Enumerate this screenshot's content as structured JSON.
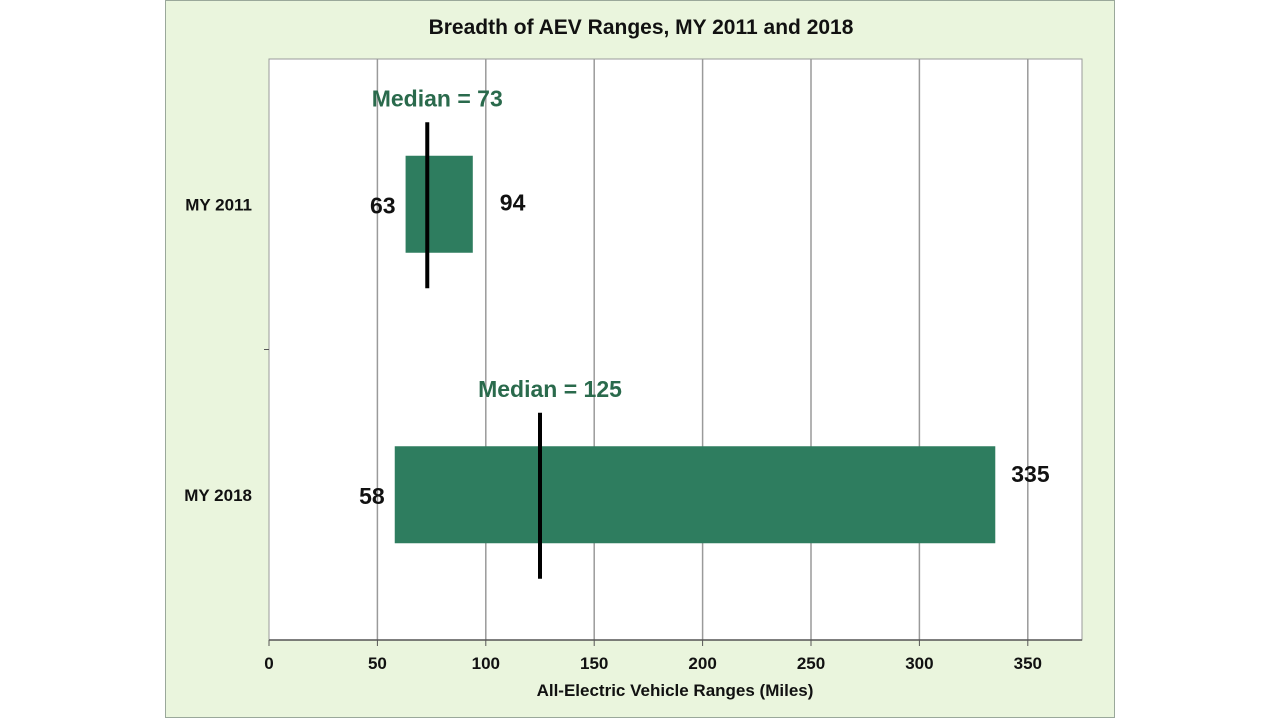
{
  "chart_data": {
    "type": "bar",
    "orientation": "horizontal",
    "title": "Breadth of AEV Ranges, MY 2011 and 2018",
    "xlabel": "All-Electric Vehicle Ranges (Miles)",
    "ylabel": "",
    "xlim": [
      0,
      375
    ],
    "x_ticks": [
      0,
      50,
      100,
      150,
      200,
      250,
      300,
      350
    ],
    "grid": "vertical",
    "categories": [
      "MY 2011",
      "MY 2018"
    ],
    "ranges": [
      {
        "category": "MY 2011",
        "min": 63,
        "max": 94,
        "median": 73,
        "min_label": "63",
        "max_label": "94",
        "median_label": "Median = 73"
      },
      {
        "category": "MY 2018",
        "min": 58,
        "max": 335,
        "median": 125,
        "min_label": "58",
        "max_label": "335",
        "median_label": "Median = 125"
      }
    ],
    "colors": {
      "bar": "#2e7d5f",
      "median_text": "#2a6a4c",
      "background": "#eaf5dd",
      "plot": "#ffffff",
      "grid": "#9a9a9a"
    }
  }
}
